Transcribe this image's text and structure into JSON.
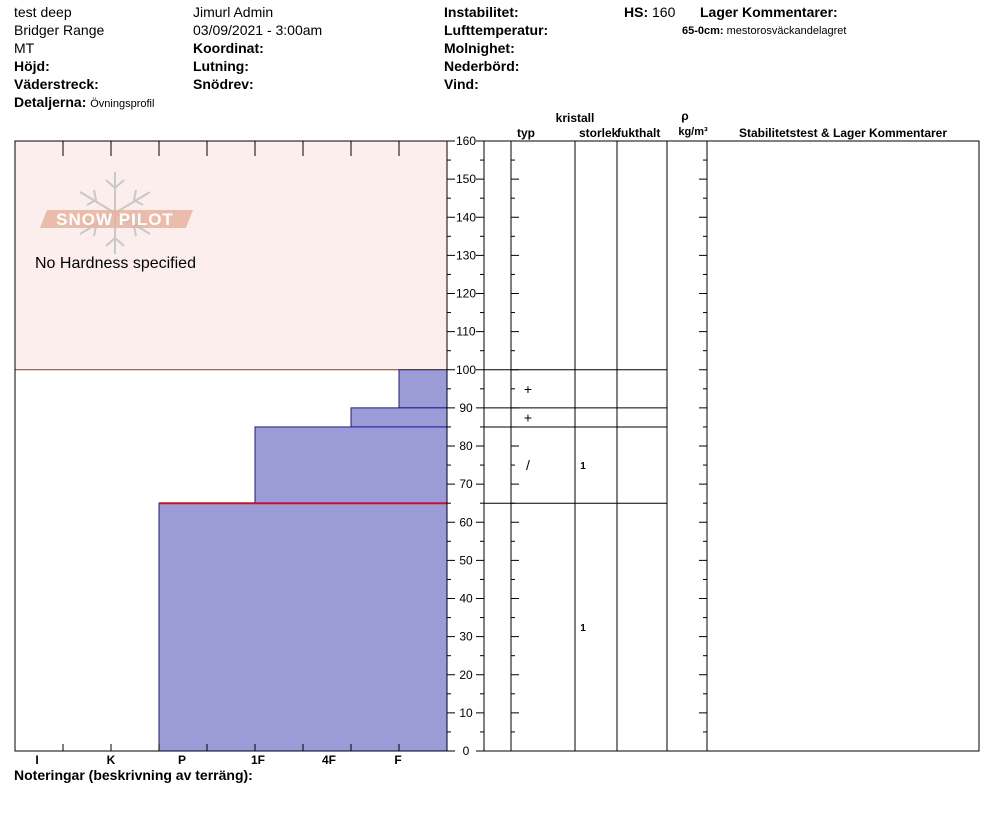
{
  "header": {
    "col1": [
      "test deep",
      "Bridger Range",
      "MT"
    ],
    "hojd_label": "Höjd:",
    "vaderstreck_label": "Väderstreck:",
    "detaljerna_label": "Detaljerna:",
    "detaljerna_value": "Övningsprofil",
    "observer": "Jimurl Admin",
    "datetime": "03/09/2021 - 3:00am",
    "koordinat_label": "Koordinat:",
    "lutning_label": "Lutning:",
    "snodrev_label": "Snödrev:",
    "instabilitet_label": "Instabilitet:",
    "lufttemperatur_label": "Lufttemperatur:",
    "molnighet_label": "Molnighet:",
    "nederbord_label": "Nederbörd:",
    "vind_label": "Vind:",
    "hs_label": "HS:",
    "hs_value": "160",
    "lager_title": "Lager Kommentarer:",
    "lager_comment_depth": "65-0cm:",
    "lager_comment_text": "mestorosväckandelagret"
  },
  "logo": {
    "text": "SNOW PILOT"
  },
  "no_hardness": "No Hardness specified",
  "columns": {
    "kristall": "kristall",
    "typ": "typ",
    "storlek": "storlek",
    "fukthalt": "fukthalt",
    "rho": "ρ",
    "density_unit": "kg/m³",
    "stability": "Stabilitetstest & Lager Kommentarer"
  },
  "hardness_labels": [
    "I",
    "K",
    "P",
    "1F",
    "4F",
    "F"
  ],
  "depth_ticks": [
    "0",
    "10",
    "20",
    "30",
    "40",
    "50",
    "60",
    "70",
    "80",
    "90",
    "100",
    "110",
    "120",
    "130",
    "140",
    "150",
    "160"
  ],
  "footer": {
    "notes_label": "Noteringar (beskrivning av terräng):"
  },
  "chart_data": {
    "type": "bar",
    "hs": 160,
    "ylim": [
      0,
      160
    ],
    "no_hardness_range": [
      100,
      160
    ],
    "layers": [
      {
        "top": 100,
        "bottom": 90,
        "hardness": "F",
        "crystal": "+",
        "size": ""
      },
      {
        "top": 90,
        "bottom": 85,
        "hardness": "4F",
        "crystal": "+",
        "size": ""
      },
      {
        "top": 85,
        "bottom": 65,
        "hardness": "1F",
        "crystal": "/",
        "size": "1"
      },
      {
        "top": 65,
        "bottom": 0,
        "hardness": "P",
        "crystal": "",
        "size": "1"
      }
    ],
    "layer_boundaries": [
      160,
      100,
      90,
      85,
      65
    ],
    "highlighted_boundary": 65,
    "colors": {
      "layer_fill": "#9b9bd7",
      "layer_stroke": "#1a1a8c",
      "no_hardness_fill": "#fdeeee",
      "no_hardness_stroke": "#8a3a2a",
      "highlight": "#c8102e"
    }
  }
}
